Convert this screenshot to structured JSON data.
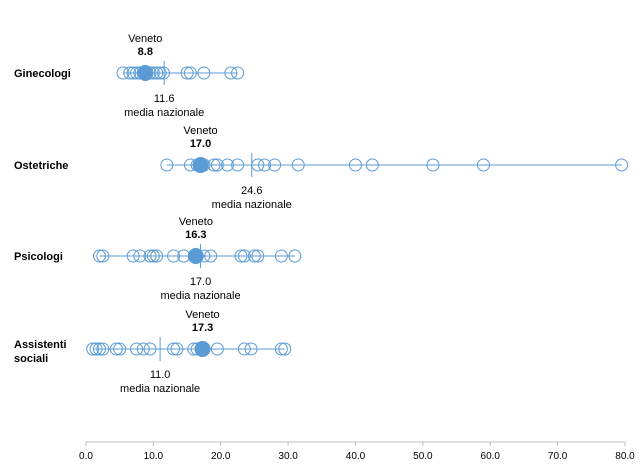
{
  "chart_data": {
    "type": "scatter",
    "xlim": [
      0,
      80
    ],
    "x_ticks": [
      "0.0",
      "10.0",
      "20.0",
      "30.0",
      "40.0",
      "50.0",
      "60.0",
      "70.0",
      "80.0"
    ],
    "grid": false,
    "colors": {
      "marker": "#5b9bd5",
      "axis": "#bfbfbf"
    },
    "categories": [
      {
        "label": "Ginecologi",
        "region_label": "Veneto",
        "region_value": 8.8,
        "region_value_label": "8.8",
        "national_value": 11.6,
        "national_value_label": "11.6",
        "national_label": "media nazionale",
        "points": [
          5.5,
          6.5,
          7.0,
          7.5,
          8.0,
          8.5,
          9.0,
          9.5,
          10.0,
          10.5,
          11.0,
          11.5,
          15.0,
          15.5,
          17.5,
          21.5,
          22.5
        ]
      },
      {
        "label": "Ostetriche",
        "region_label": "Veneto",
        "region_value": 17.0,
        "region_value_label": "17.0",
        "national_value": 24.6,
        "national_value_label": "24.6",
        "national_label": "media nazionale",
        "points": [
          12.0,
          15.5,
          16.5,
          17.5,
          19.0,
          19.5,
          21.0,
          22.5,
          25.5,
          26.5,
          28.0,
          31.5,
          40.0,
          42.5,
          51.5,
          59.0,
          79.5
        ]
      },
      {
        "label": "Psicologi",
        "region_label": "Veneto",
        "region_value": 16.3,
        "region_value_label": "16.3",
        "national_value": 17.0,
        "national_value_label": "17.0",
        "national_label": "media nazionale",
        "points": [
          2.0,
          2.5,
          7.0,
          8.0,
          9.5,
          10.0,
          10.5,
          13.0,
          14.5,
          17.5,
          18.5,
          23.0,
          23.5,
          25.0,
          25.5,
          29.0,
          31.0
        ]
      },
      {
        "label": "Assistenti sociali",
        "label_lines": [
          "Assistenti",
          "sociali"
        ],
        "region_label": "Veneto",
        "region_value": 17.3,
        "region_value_label": "17.3",
        "national_value": 11.0,
        "national_value_label": "11.0",
        "national_label": "media nazionale",
        "points": [
          1.0,
          1.5,
          2.0,
          2.5,
          4.5,
          5.0,
          7.5,
          8.5,
          9.5,
          13.0,
          13.5,
          16.0,
          16.5,
          19.5,
          23.5,
          24.5,
          29.0,
          29.5
        ]
      }
    ]
  }
}
